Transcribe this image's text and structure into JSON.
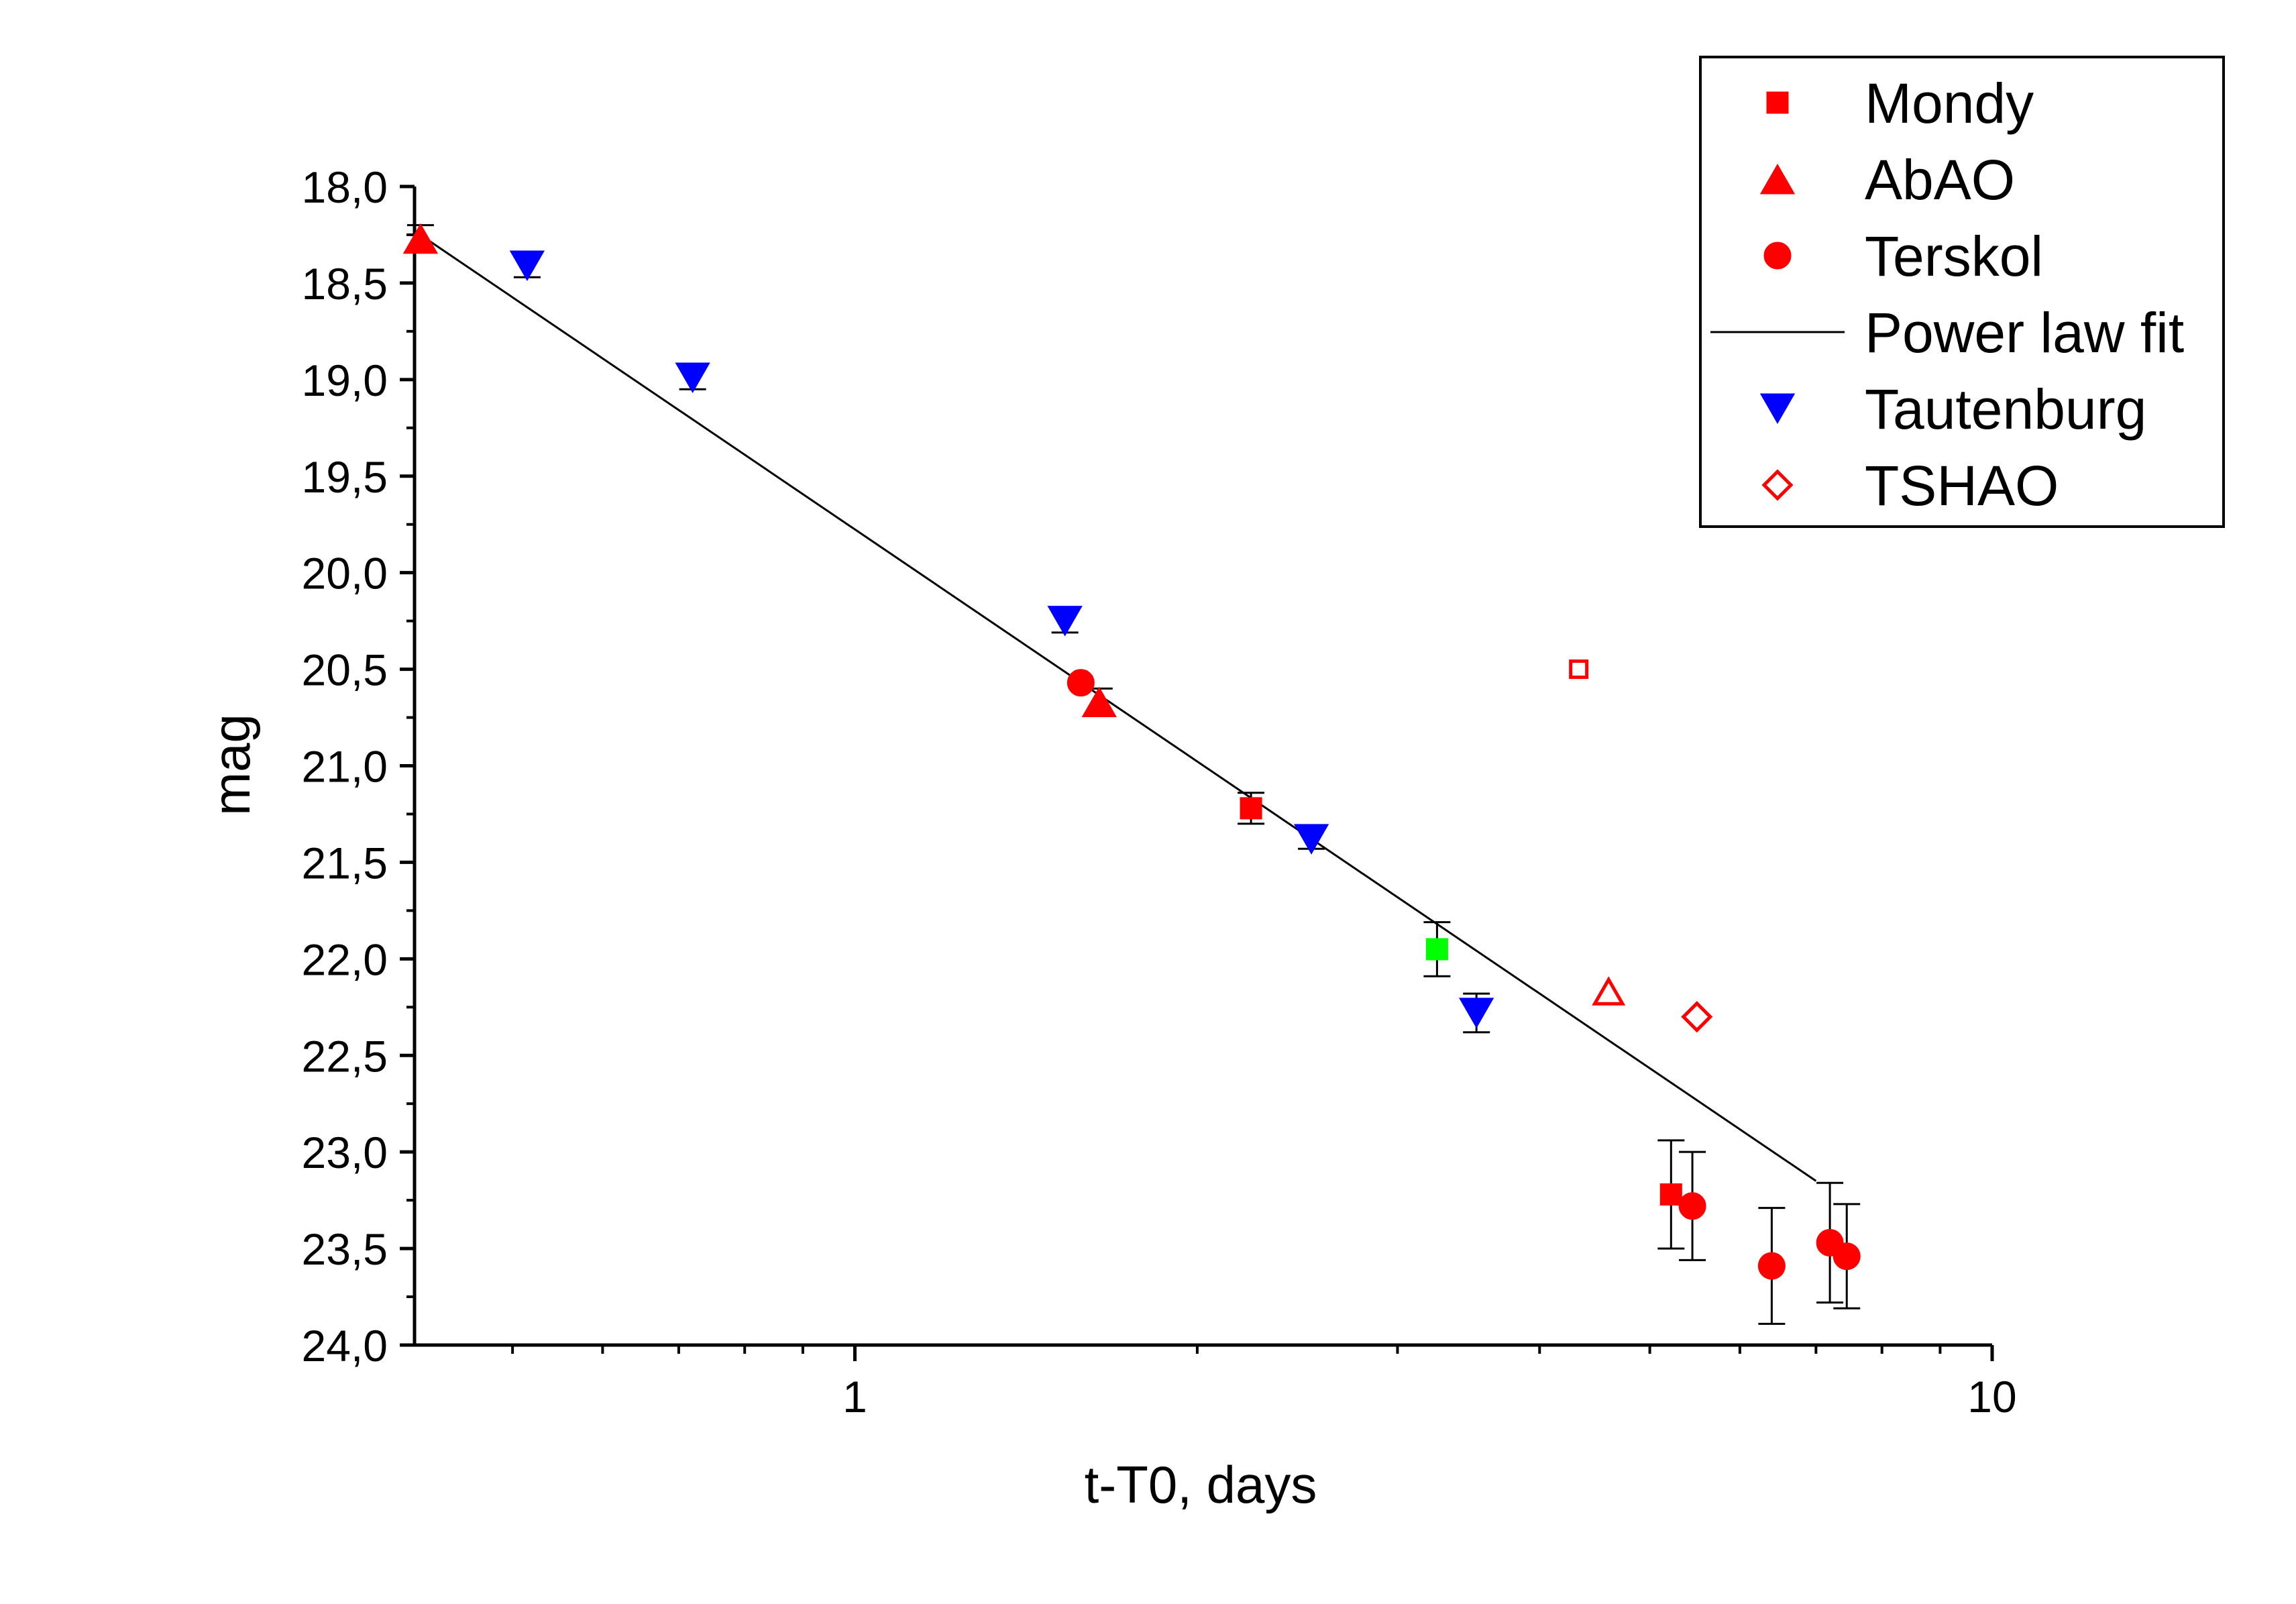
{
  "colors": {
    "red": "#ff0000",
    "blue": "#0000ff",
    "green": "#00ff00",
    "black": "#000000"
  },
  "chart_data": {
    "type": "scatter",
    "xscale": "log",
    "xlim": [
      0.41,
      10
    ],
    "ylim": [
      18.0,
      24.0
    ],
    "y_inverted": true,
    "xlabel": "t-T0, days",
    "ylabel": "mag",
    "grid": false,
    "legend_position": "top-right",
    "x_ticks": [
      "1",
      "10"
    ],
    "y_ticks": [
      "18,0",
      "18,5",
      "19,0",
      "19,5",
      "20,0",
      "20,5",
      "21,0",
      "21,5",
      "22,0",
      "22,5",
      "23,0",
      "23,5",
      "24,0"
    ],
    "legend": [
      {
        "label": "Mondy",
        "marker": "square-filled",
        "color": "#ff0000"
      },
      {
        "label": "AbAO",
        "marker": "triangle-up-filled",
        "color": "#ff0000"
      },
      {
        "label": "Terskol",
        "marker": "circle-filled",
        "color": "#ff0000"
      },
      {
        "label": "Power law fit",
        "marker": "line",
        "color": "#000000"
      },
      {
        "label": "Tautenburg",
        "marker": "triangle-down-filled",
        "color": "#0000ff"
      },
      {
        "label": "TSHAO",
        "marker": "diamond-open",
        "color": "#ff0000"
      }
    ],
    "series": [
      {
        "name": "Mondy",
        "marker": "square-filled",
        "color": "#ff0000",
        "points": [
          {
            "x": 2.23,
            "y": 21.22,
            "err": 0.08
          },
          {
            "x": 5.22,
            "y": 23.22,
            "err": 0.28
          }
        ]
      },
      {
        "name": "AbAO",
        "marker": "triangle-up-filled",
        "color": "#ff0000",
        "points": [
          {
            "x": 0.415,
            "y": 18.27,
            "err": 0.07
          },
          {
            "x": 1.64,
            "y": 20.67,
            "err": 0.07
          }
        ]
      },
      {
        "name": "Terskol",
        "marker": "circle-filled",
        "color": "#ff0000",
        "points": [
          {
            "x": 1.58,
            "y": 20.57,
            "err": 0
          },
          {
            "x": 5.45,
            "y": 23.28,
            "err": 0.28
          },
          {
            "x": 6.4,
            "y": 23.59,
            "err": 0.3
          },
          {
            "x": 7.2,
            "y": 23.47,
            "err": 0.31
          },
          {
            "x": 7.45,
            "y": 23.54,
            "err": 0.27
          }
        ]
      },
      {
        "name": "Tautenburg",
        "marker": "triangle-down-filled",
        "color": "#0000ff",
        "points": [
          {
            "x": 0.515,
            "y": 18.41,
            "err": 0.06
          },
          {
            "x": 0.72,
            "y": 18.99,
            "err": 0.06
          },
          {
            "x": 1.53,
            "y": 20.25,
            "err": 0.06
          },
          {
            "x": 2.52,
            "y": 21.38,
            "err": 0.05
          },
          {
            "x": 3.52,
            "y": 22.28,
            "err": 0.1
          }
        ]
      },
      {
        "name": "TSHAO",
        "marker": "diamond-open",
        "color": "#ff0000",
        "points": [
          {
            "x": 5.5,
            "y": 22.3
          }
        ]
      },
      {
        "marker": "square-open",
        "color": "#ff0000",
        "points": [
          {
            "x": 4.33,
            "y": 20.5
          }
        ]
      },
      {
        "marker": "triangle-up-open",
        "color": "#ff0000",
        "points": [
          {
            "x": 4.6,
            "y": 22.17
          }
        ]
      },
      {
        "marker": "square-filled",
        "color": "#00ff00",
        "points": [
          {
            "x": 3.25,
            "y": 21.95,
            "err": 0.14
          }
        ]
      }
    ],
    "fit_line": {
      "name": "Power law fit",
      "color": "#000000",
      "points": [
        {
          "x": 0.41,
          "y": 18.23
        },
        {
          "x": 7.0,
          "y": 23.15
        }
      ]
    }
  }
}
